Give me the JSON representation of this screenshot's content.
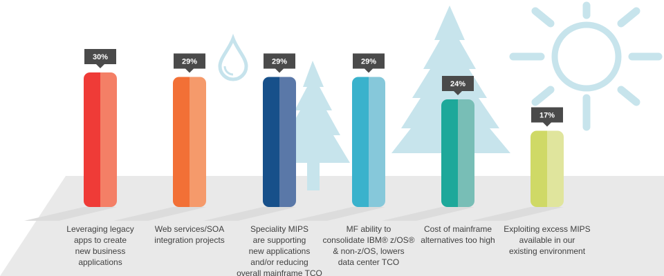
{
  "chart_data": {
    "type": "bar",
    "categories": [
      [
        "Leveraging legacy",
        "apps to create",
        "new business",
        "applications"
      ],
      [
        "Web services/SOA",
        "integration projects"
      ],
      [
        "Speciality MIPS",
        "are supporting",
        "new applications",
        "and/or reducing",
        "overall mainframe TCO"
      ],
      [
        "MF ability to",
        "consolidate IBM® z/OS®",
        "& non-z/OS, lowers",
        "data center TCO"
      ],
      [
        "Cost of mainframe",
        "alternatives too high"
      ],
      [
        "Exploiting excess MIPS",
        "available in our",
        "existing environment"
      ]
    ],
    "values": [
      30,
      29,
      29,
      29,
      24,
      17
    ],
    "value_labels": [
      "30%",
      "29%",
      "29%",
      "29%",
      "24%",
      "17%"
    ],
    "ylim": [
      0,
      30
    ],
    "grid": false,
    "colors": [
      [
        "#ef3b37",
        "#f47f66"
      ],
      [
        "#f27036",
        "#f59a6b"
      ],
      [
        "#17508a",
        "#5a78a8"
      ],
      [
        "#3ab2cc",
        "#86c8da"
      ],
      [
        "#1ea89a",
        "#78beb6"
      ],
      [
        "#cfd966",
        "#e0e59d"
      ]
    ],
    "icons": [
      "water-drop-icon",
      "pine-tree-icon",
      "pine-tree-icon",
      "sun-icon"
    ]
  }
}
